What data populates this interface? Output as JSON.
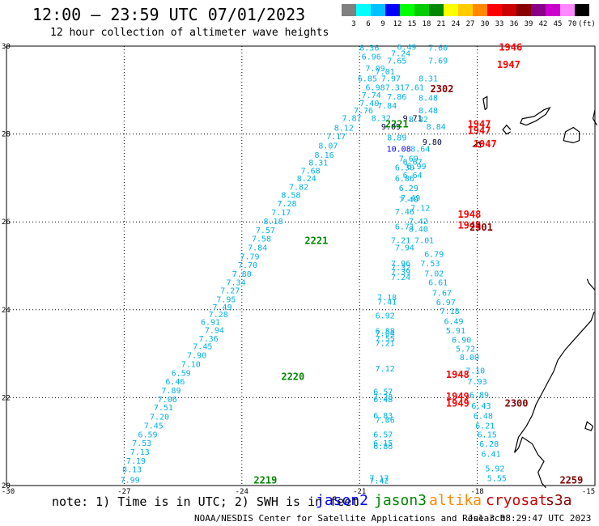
{
  "title": "12:00 — 23:59 UTC 07/01/2023",
  "subtitle": "12 hour collection of altimeter wave heights",
  "colorbar": {
    "colors": [
      "#808080",
      "#00ffff",
      "#00c0ff",
      "#0000ff",
      "#00ff00",
      "#00cc00",
      "#008800",
      "#ffff00",
      "#ffcc00",
      "#ff8800",
      "#ff0000",
      "#cc0000",
      "#880000",
      "#880088",
      "#cc00cc",
      "#ff88ff",
      "#000000"
    ],
    "labels": [
      "3",
      "6",
      "9",
      "12",
      "15",
      "18",
      "21",
      "24",
      "27",
      "30",
      "33",
      "36",
      "39",
      "42",
      "45",
      "70",
      "(ft)"
    ]
  },
  "map": {
    "x_ticks": [
      "-30",
      "-27",
      "-24",
      "-21",
      "-18",
      "-15"
    ],
    "y_ticks": [
      "30",
      "28",
      "26",
      "24",
      "22",
      "20"
    ],
    "xlim": [
      -30,
      -15
    ],
    "ylim": [
      20,
      30
    ]
  },
  "track_times": [
    {
      "text": "1946",
      "color": "#ff0000",
      "lon": -17.15,
      "lat": 29.9
    },
    {
      "text": "1947",
      "color": "#ff0000",
      "lon": -17.2,
      "lat": 29.5
    },
    {
      "text": "2302",
      "color": "#880000",
      "lon": -18.9,
      "lat": 28.95
    },
    {
      "text": "1947",
      "color": "#ff0000",
      "lon": -17.95,
      "lat": 28.15
    },
    {
      "text": "1947",
      "color": "#ff0000",
      "lon": -17.95,
      "lat": 28.0
    },
    {
      "text": "2221",
      "color": "#008800",
      "lon": -20.05,
      "lat": 28.15
    },
    {
      "text": "1947",
      "color": "#ff0000",
      "lon": -17.8,
      "lat": 27.7
    },
    {
      "text": "1948",
      "color": "#ff0000",
      "lon": -18.2,
      "lat": 26.1
    },
    {
      "text": "1948",
      "color": "#ff0000",
      "lon": -18.2,
      "lat": 25.85
    },
    {
      "text": "2301",
      "color": "#880000",
      "lon": -17.9,
      "lat": 25.8
    },
    {
      "text": "2221",
      "color": "#008800",
      "lon": -22.1,
      "lat": 25.5
    },
    {
      "text": "2220",
      "color": "#008800",
      "lon": -22.7,
      "lat": 22.4
    },
    {
      "text": "1948",
      "color": "#ff0000",
      "lon": -18.5,
      "lat": 22.45
    },
    {
      "text": "1949",
      "color": "#ff0000",
      "lon": -18.5,
      "lat": 21.95
    },
    {
      "text": "1949",
      "color": "#ff0000",
      "lon": -18.5,
      "lat": 21.8
    },
    {
      "text": "2300",
      "color": "#880000",
      "lon": -17.0,
      "lat": 21.8
    },
    {
      "text": "2219",
      "color": "#008800",
      "lon": -23.4,
      "lat": 20.05
    },
    {
      "text": "2259",
      "color": "#880000",
      "lon": -15.6,
      "lat": 20.05
    }
  ],
  "wave_heights": [
    {
      "v": "8.36",
      "lon": -20.75,
      "lat": 29.9
    },
    {
      "v": "6.49",
      "lon": -19.8,
      "lat": 29.92
    },
    {
      "v": "7.60",
      "lon": -19.0,
      "lat": 29.9
    },
    {
      "v": "6.96",
      "lon": -20.7,
      "lat": 29.7
    },
    {
      "v": "7.24",
      "lon": -19.95,
      "lat": 29.77
    },
    {
      "v": "7.65",
      "lon": -20.05,
      "lat": 29.6
    },
    {
      "v": "7.69",
      "lon": -19.0,
      "lat": 29.6
    },
    {
      "v": "7.09",
      "lon": -20.6,
      "lat": 29.43
    },
    {
      "v": "7.01",
      "lon": -20.35,
      "lat": 29.36
    },
    {
      "v": "6.85",
      "lon": -20.8,
      "lat": 29.2
    },
    {
      "v": "7.97",
      "lon": -20.2,
      "lat": 29.2
    },
    {
      "v": "8.31",
      "lon": -19.25,
      "lat": 29.2
    },
    {
      "v": "6.98",
      "lon": -20.6,
      "lat": 29.0
    },
    {
      "v": "7.31",
      "lon": -20.1,
      "lat": 29.0
    },
    {
      "v": "7.61",
      "lon": -19.6,
      "lat": 29.0
    },
    {
      "v": "7.74",
      "lon": -20.7,
      "lat": 28.82
    },
    {
      "v": "7.86",
      "lon": -20.05,
      "lat": 28.78
    },
    {
      "v": "8.48",
      "lon": -19.25,
      "lat": 28.76
    },
    {
      "v": "7.40",
      "lon": -20.75,
      "lat": 28.64
    },
    {
      "v": "7.84",
      "lon": -20.3,
      "lat": 28.58
    },
    {
      "v": "7.76",
      "lon": -20.9,
      "lat": 28.47
    },
    {
      "v": "8.48",
      "lon": -19.25,
      "lat": 28.47
    },
    {
      "v": "7.87",
      "lon": -21.2,
      "lat": 28.3
    },
    {
      "v": "8.32",
      "lon": -20.45,
      "lat": 28.3
    },
    {
      "v": "9.71",
      "lon": -19.65,
      "lat": 28.3
    },
    {
      "v": "8.82",
      "lon": -19.5,
      "lat": 28.27
    },
    {
      "v": "8.12",
      "lon": -21.4,
      "lat": 28.08
    },
    {
      "v": "9.09",
      "lon": -20.2,
      "lat": 28.1
    },
    {
      "v": "8.84",
      "lon": -19.05,
      "lat": 28.1
    },
    {
      "v": "7.17",
      "lon": -21.6,
      "lat": 27.88
    },
    {
      "v": "8.89",
      "lon": -20.05,
      "lat": 27.85
    },
    {
      "v": "9.80",
      "lon": -19.15,
      "lat": 27.75
    },
    {
      "v": "8.07",
      "lon": -21.8,
      "lat": 27.67
    },
    {
      "v": "10.08",
      "lon": -20.0,
      "lat": 27.6
    },
    {
      "v": "8.64",
      "lon": -19.45,
      "lat": 27.6
    },
    {
      "v": "8.16",
      "lon": -21.9,
      "lat": 27.46
    },
    {
      "v": "7.69",
      "lon": -19.75,
      "lat": 27.38
    },
    {
      "v": "8.31",
      "lon": -22.05,
      "lat": 27.28
    },
    {
      "v": "6.67",
      "lon": -19.65,
      "lat": 27.3
    },
    {
      "v": "6.99",
      "lon": -19.55,
      "lat": 27.2
    },
    {
      "v": "7.68",
      "lon": -22.25,
      "lat": 27.1
    },
    {
      "v": "6.30",
      "lon": -19.85,
      "lat": 27.17
    },
    {
      "v": "6.64",
      "lon": -19.65,
      "lat": 27.0
    },
    {
      "v": "8.24",
      "lon": -22.35,
      "lat": 26.92
    },
    {
      "v": "6.86",
      "lon": -19.85,
      "lat": 26.92
    },
    {
      "v": "7.82",
      "lon": -22.55,
      "lat": 26.73
    },
    {
      "v": "6.29",
      "lon": -19.75,
      "lat": 26.7
    },
    {
      "v": "8.58",
      "lon": -22.75,
      "lat": 26.55
    },
    {
      "v": "7.49",
      "lon": -19.7,
      "lat": 26.48
    },
    {
      "v": "7.40",
      "lon": -19.75,
      "lat": 26.45
    },
    {
      "v": "7.28",
      "lon": -22.85,
      "lat": 26.35
    },
    {
      "v": "7.12",
      "lon": -19.45,
      "lat": 26.25
    },
    {
      "v": "7.46",
      "lon": -19.85,
      "lat": 26.17
    },
    {
      "v": "7.17",
      "lon": -23.0,
      "lat": 26.15
    },
    {
      "v": "7.42",
      "lon": -19.5,
      "lat": 25.95
    },
    {
      "v": "8.18",
      "lon": -23.2,
      "lat": 25.95
    },
    {
      "v": "6.71",
      "lon": -19.85,
      "lat": 25.83
    },
    {
      "v": "8.40",
      "lon": -19.5,
      "lat": 25.77
    },
    {
      "v": "7.57",
      "lon": -23.4,
      "lat": 25.75
    },
    {
      "v": "7.58",
      "lon": -23.5,
      "lat": 25.55
    },
    {
      "v": "7.21",
      "lon": -19.95,
      "lat": 25.52
    },
    {
      "v": "7.01",
      "lon": -19.35,
      "lat": 25.52
    },
    {
      "v": "7.84",
      "lon": -23.6,
      "lat": 25.35
    },
    {
      "v": "7.94",
      "lon": -19.85,
      "lat": 25.35
    },
    {
      "v": "6.79",
      "lon": -19.1,
      "lat": 25.2
    },
    {
      "v": "7.79",
      "lon": -23.8,
      "lat": 25.15
    },
    {
      "v": "7.96",
      "lon": -19.95,
      "lat": 24.99
    },
    {
      "v": "7.53",
      "lon": -19.2,
      "lat": 24.99
    },
    {
      "v": "7.70",
      "lon": -23.85,
      "lat": 24.95
    },
    {
      "v": "7.32",
      "lon": -19.95,
      "lat": 24.9
    },
    {
      "v": "7.39",
      "lon": -19.95,
      "lat": 24.8
    },
    {
      "v": "7.02",
      "lon": -19.1,
      "lat": 24.76
    },
    {
      "v": "7.80",
      "lon": -24.0,
      "lat": 24.75
    },
    {
      "v": "7.24",
      "lon": -19.95,
      "lat": 24.68
    },
    {
      "v": "6.61",
      "lon": -19.0,
      "lat": 24.56
    },
    {
      "v": "7.34",
      "lon": -24.15,
      "lat": 24.56
    },
    {
      "v": "7.27",
      "lon": -24.3,
      "lat": 24.37
    },
    {
      "v": "7.67",
      "lon": -18.9,
      "lat": 24.32
    },
    {
      "v": "7.95",
      "lon": -24.4,
      "lat": 24.17
    },
    {
      "v": "7.18",
      "lon": -20.3,
      "lat": 24.22
    },
    {
      "v": "7.41",
      "lon": -20.3,
      "lat": 24.12
    },
    {
      "v": "6.97",
      "lon": -18.8,
      "lat": 24.11
    },
    {
      "v": "7.49",
      "lon": -24.5,
      "lat": 24.0
    },
    {
      "v": "7.18",
      "lon": -18.7,
      "lat": 23.9
    },
    {
      "v": "7.28",
      "lon": -24.6,
      "lat": 23.83
    },
    {
      "v": "6.92",
      "lon": -20.35,
      "lat": 23.8
    },
    {
      "v": "6.49",
      "lon": -18.6,
      "lat": 23.67
    },
    {
      "v": "6.91",
      "lon": -24.8,
      "lat": 23.66
    },
    {
      "v": "7.94",
      "lon": -24.7,
      "lat": 23.47
    },
    {
      "v": "6.88",
      "lon": -20.35,
      "lat": 23.45
    },
    {
      "v": "5.91",
      "lon": -18.55,
      "lat": 23.46
    },
    {
      "v": "7.04",
      "lon": -20.35,
      "lat": 23.4
    },
    {
      "v": "7.36",
      "lon": -24.85,
      "lat": 23.28
    },
    {
      "v": "7.55",
      "lon": -20.35,
      "lat": 23.28
    },
    {
      "v": "6.90",
      "lon": -18.4,
      "lat": 23.25
    },
    {
      "v": "7.21",
      "lon": -20.35,
      "lat": 23.18
    },
    {
      "v": "7.45",
      "lon": -25.0,
      "lat": 23.1
    },
    {
      "v": "5.72",
      "lon": -18.3,
      "lat": 23.05
    },
    {
      "v": "7.90",
      "lon": -25.15,
      "lat": 22.9
    },
    {
      "v": "8.00",
      "lon": -18.2,
      "lat": 22.85
    },
    {
      "v": "7.10",
      "lon": -25.3,
      "lat": 22.7
    },
    {
      "v": "7.12",
      "lon": -20.35,
      "lat": 22.6
    },
    {
      "v": "7.10",
      "lon": -18.05,
      "lat": 22.55
    },
    {
      "v": "6.59",
      "lon": -25.55,
      "lat": 22.5
    },
    {
      "v": "6.46",
      "lon": -25.7,
      "lat": 22.3
    },
    {
      "v": "7.93",
      "lon": -18.0,
      "lat": 22.3
    },
    {
      "v": "7.89",
      "lon": -25.8,
      "lat": 22.1
    },
    {
      "v": "6.57",
      "lon": -20.4,
      "lat": 22.07
    },
    {
      "v": "6.89",
      "lon": -17.95,
      "lat": 22.0
    },
    {
      "v": "7.28",
      "lon": -20.4,
      "lat": 21.95
    },
    {
      "v": "6.48",
      "lon": -20.4,
      "lat": 21.9
    },
    {
      "v": "7.06",
      "lon": -25.9,
      "lat": 21.9
    },
    {
      "v": "6.43",
      "lon": -17.9,
      "lat": 21.75
    },
    {
      "v": "7.51",
      "lon": -26.0,
      "lat": 21.71
    },
    {
      "v": "6.83",
      "lon": -20.4,
      "lat": 21.53
    },
    {
      "v": "6.48",
      "lon": -17.85,
      "lat": 21.52
    },
    {
      "v": "7.20",
      "lon": -26.1,
      "lat": 21.5
    },
    {
      "v": "7.06",
      "lon": -20.35,
      "lat": 21.43
    },
    {
      "v": "7.45",
      "lon": -26.25,
      "lat": 21.3
    },
    {
      "v": "6.21",
      "lon": -17.8,
      "lat": 21.3
    },
    {
      "v": "6.57",
      "lon": -20.4,
      "lat": 21.1
    },
    {
      "v": "6.59",
      "lon": -26.4,
      "lat": 21.1
    },
    {
      "v": "6.15",
      "lon": -17.75,
      "lat": 21.1
    },
    {
      "v": "6.15",
      "lon": -20.4,
      "lat": 20.9
    },
    {
      "v": "6.86",
      "lon": -20.4,
      "lat": 20.83
    },
    {
      "v": "7.53",
      "lon": -26.55,
      "lat": 20.9
    },
    {
      "v": "6.28",
      "lon": -17.7,
      "lat": 20.88
    },
    {
      "v": "7.13",
      "lon": -26.6,
      "lat": 20.7
    },
    {
      "v": "6.41",
      "lon": -17.65,
      "lat": 20.65
    },
    {
      "v": "7.19",
      "lon": -26.7,
      "lat": 20.5
    },
    {
      "v": "5.92",
      "lon": -17.55,
      "lat": 20.32
    },
    {
      "v": "8.13",
      "lon": -26.8,
      "lat": 20.3
    },
    {
      "v": "7.17",
      "lon": -20.5,
      "lat": 20.1
    },
    {
      "v": "7.42",
      "lon": -20.5,
      "lat": 20.05
    },
    {
      "v": "5.55",
      "lon": -17.5,
      "lat": 20.1
    },
    {
      "v": "7.99",
      "lon": -26.85,
      "lat": 20.06
    }
  ],
  "note": "note: 1) Time is in UTC; 2) SWH is in feet",
  "satellites": [
    {
      "name": "jason2",
      "color": "#0000ff"
    },
    {
      "name": "jason3",
      "color": "#008800"
    },
    {
      "name": "altika",
      "color": "#ff8800"
    },
    {
      "name": "cryosat",
      "color": "#cc0000"
    },
    {
      "name": "s3a",
      "color": "#880000"
    }
  ],
  "footer_left": "NOAA/NESDIS Center for Satellite Applications and Research",
  "footer_right": "Jul  3 08:29:47 UTC 2023"
}
